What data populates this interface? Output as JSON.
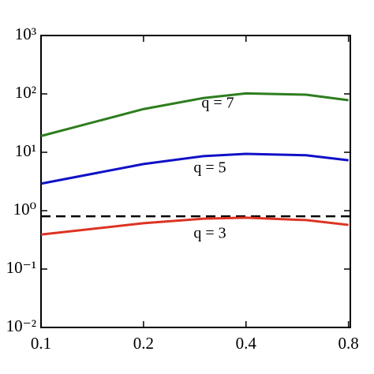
{
  "chart_data": {
    "type": "line",
    "x": [
      0.1,
      0.2,
      0.3,
      0.4,
      0.6,
      0.8
    ],
    "series": [
      {
        "color": "#2e7d1e",
        "values": [
          19,
          55,
          85,
          102,
          97,
          78
        ]
      },
      {
        "color": "#1010c8",
        "values": [
          2.9,
          6.3,
          8.6,
          9.4,
          8.9,
          7.3
        ]
      },
      {
        "color": "#dd3322",
        "values": [
          0.39,
          0.61,
          0.73,
          0.76,
          0.69,
          0.57
        ]
      }
    ],
    "reference_line": {
      "value": 0.8,
      "color": "#000000",
      "style": "dashed"
    },
    "annotations": [
      "q = 7",
      "q = 5",
      "q = 3"
    ],
    "xscale": "log",
    "yscale": "log",
    "xlim": [
      0.1,
      0.81
    ],
    "ylim": [
      0.01,
      1000
    ],
    "xticks": [
      0.1,
      0.2,
      0.4,
      0.8
    ],
    "yticks": [
      {
        "value": 0.01,
        "label": "10⁻²"
      },
      {
        "value": 0.1,
        "label": "10⁻¹"
      },
      {
        "value": 1,
        "label": "10⁰"
      },
      {
        "value": 10,
        "label": "10¹"
      },
      {
        "value": 100,
        "label": "10²"
      },
      {
        "value": 1000,
        "label": "10³"
      }
    ]
  }
}
